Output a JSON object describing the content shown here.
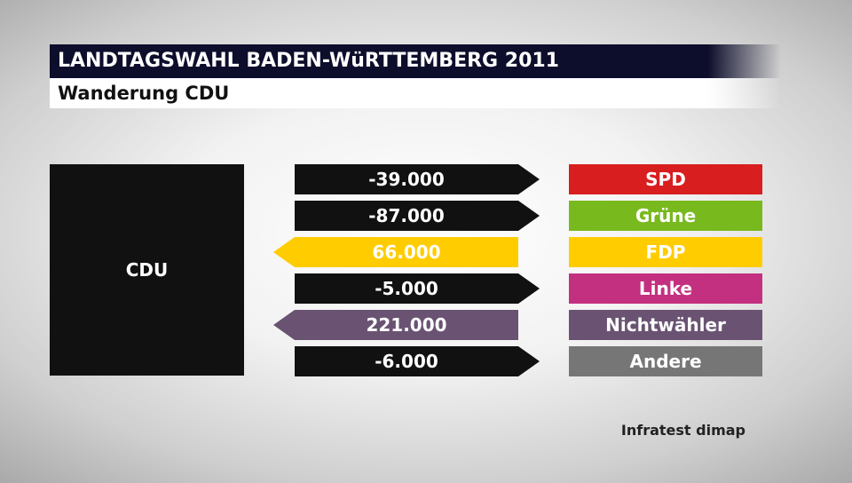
{
  "header": {
    "title": "LANDTAGSWAHL BADEN-WüRTTEMBERG 2011",
    "subtitle": "Wanderung CDU"
  },
  "source_party": "CDU",
  "credit": "Infratest dimap",
  "chart_data": {
    "type": "bar",
    "title": "LANDTAGSWAHL BADEN-WüRTTEMBERG 2011",
    "subtitle": "Wanderung CDU",
    "source": "CDU",
    "categories": [
      "SPD",
      "Grüne",
      "FDP",
      "Linke",
      "Nichtwähler",
      "Andere"
    ],
    "values": [
      -39000,
      -87000,
      66000,
      -5000,
      221000,
      -6000
    ],
    "value_labels": [
      "-39.000",
      "-87.000",
      "66.000",
      "-5.000",
      "221.000",
      "-6.000"
    ],
    "colors": [
      "#d81e1e",
      "#78b91e",
      "#ffcc00",
      "#c3307f",
      "#6a5372",
      "#767676"
    ],
    "gain_arrow_colors": [
      "#ffcc00",
      "#6a5372"
    ],
    "loss_arrow_color": "#111111"
  }
}
